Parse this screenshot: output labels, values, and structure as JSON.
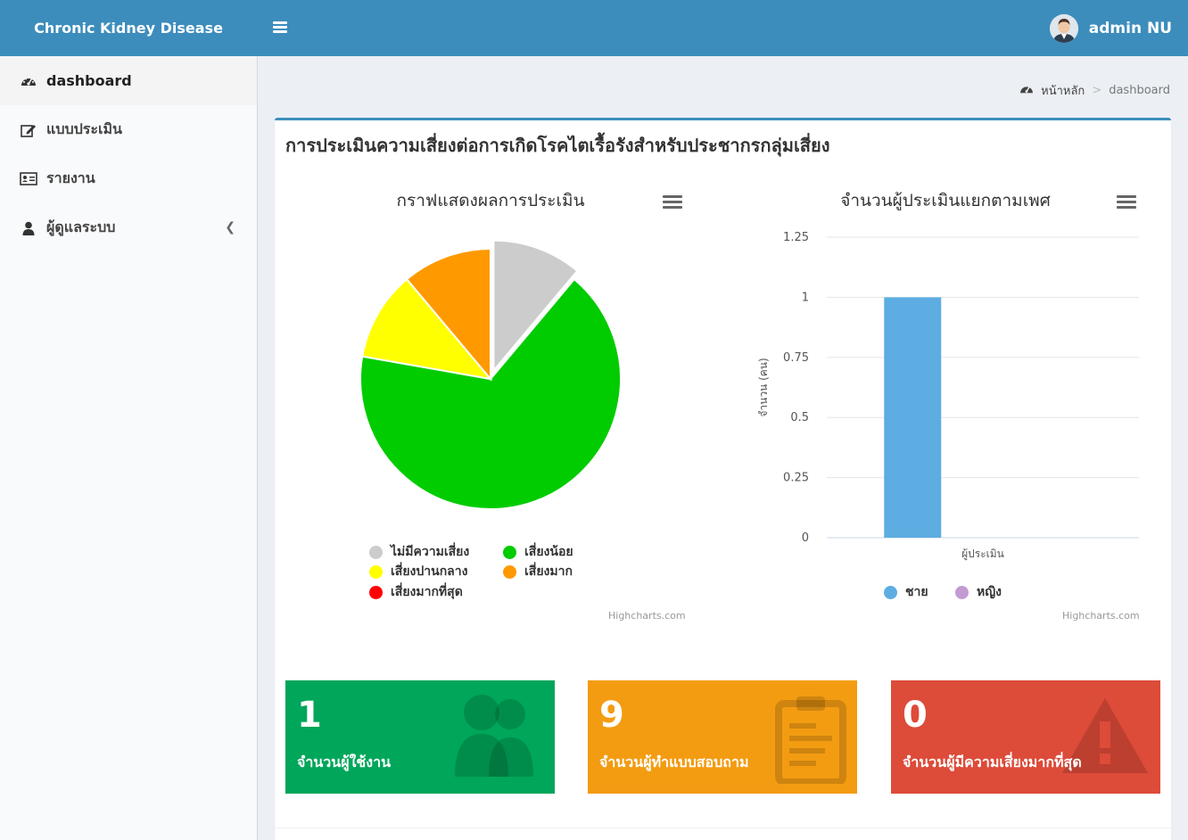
{
  "app": {
    "brand": "Chronic Kidney Disease",
    "user_name": "admin NU"
  },
  "sidebar": {
    "items": [
      {
        "label": "dashboard",
        "icon": "dashboard-icon"
      },
      {
        "label": "แบบประเมิน",
        "icon": "edit-icon"
      },
      {
        "label": "รายงาน",
        "icon": "id-card-icon"
      },
      {
        "label": "ผู้ดูแลระบบ",
        "icon": "user-icon"
      }
    ]
  },
  "breadcrumb": {
    "home": "หน้าหลัก",
    "sep": ">",
    "current": "dashboard"
  },
  "box": {
    "title": "การประเมินความเสี่ยงต่อการเกิดโรคไตเรื้อรังสำหรับประชากรกลุ่มเสี่ยง"
  },
  "chart_data": [
    {
      "type": "pie",
      "title": "กราฟแสดงผลการประเมิน",
      "series": [
        {
          "name": "ไม่มีความเสี่ยง",
          "value": 1,
          "color": "#cccccc"
        },
        {
          "name": "เสี่ยงน้อย",
          "value": 6,
          "color": "#00cc00"
        },
        {
          "name": "เสี่ยงปานกลาง",
          "value": 1,
          "color": "#ffff00"
        },
        {
          "name": "เสี่ยงมาก",
          "value": 1,
          "color": "#ff9900"
        },
        {
          "name": "เสี่ยงมากที่สุด",
          "value": 0,
          "color": "#ff0000"
        }
      ],
      "credit": "Highcharts.com"
    },
    {
      "type": "bar",
      "title": "จำนวนผู้ประเมินแยกตามเพศ",
      "categories": [
        "ผู้ประเมิน"
      ],
      "ylabel": "จำนวน (คน)",
      "yticks": [
        "0",
        "0.25",
        "0.5",
        "0.75",
        "1",
        "1.25"
      ],
      "ylim": [
        0,
        1.25
      ],
      "series": [
        {
          "name": "ชาย",
          "values": [
            1
          ],
          "color": "#5dade2"
        },
        {
          "name": "หญิง",
          "values": [
            0
          ],
          "color": "#c39bd3"
        }
      ],
      "credit": "Highcharts.com"
    }
  ],
  "stats": [
    {
      "value": "1",
      "label": "จำนวนผู้ใช้งาน",
      "color": "#00a65a",
      "icon": "users-icon"
    },
    {
      "value": "9",
      "label": "จำนวนผู้ทำแบบสอบถาม",
      "color": "#f39c12",
      "icon": "clipboard-icon"
    },
    {
      "value": "0",
      "label": "จำนวนผู้มีความเสี่ยงมากที่สุด",
      "color": "#dd4b39",
      "icon": "warning-icon"
    }
  ]
}
